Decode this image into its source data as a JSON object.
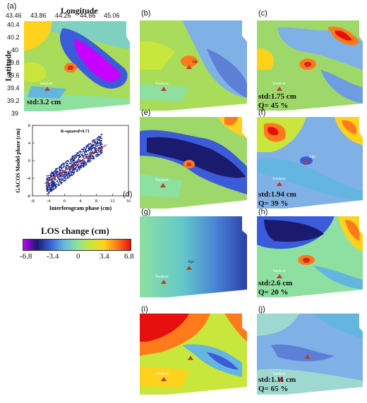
{
  "figure": {
    "longitude_label": "Longitude",
    "latitude_label": "Latitude",
    "lon_ticks": [
      "43.46",
      "43.86",
      "44.26",
      "44.66",
      "45.06"
    ],
    "lat_ticks": [
      "40.4",
      "40.2",
      "40",
      "39.8",
      "39.6",
      "39.4",
      "39.2",
      "39"
    ],
    "volcano_labels": {
      "ararat": "Ağrı",
      "tendurek": "Tendürek"
    },
    "panels": [
      {
        "id": "a",
        "label": "(a)",
        "stats": [
          "std:3.2 cm"
        ]
      },
      {
        "id": "b",
        "label": "(b)",
        "stats": []
      },
      {
        "id": "c",
        "label": "(c)",
        "stats": [
          "std:1.75 cm",
          "Q= 45 %"
        ]
      },
      {
        "id": "d",
        "label": "(d)",
        "stats": []
      },
      {
        "id": "e",
        "label": "(e)",
        "stats": []
      },
      {
        "id": "f",
        "label": "(f)",
        "stats": [
          "std:1.94 cm",
          "Q= 39 %"
        ]
      },
      {
        "id": "g",
        "label": "(g)",
        "stats": []
      },
      {
        "id": "h",
        "label": "(h)",
        "stats": [
          "std:2.6 cm",
          "Q= 20 %"
        ]
      },
      {
        "id": "i",
        "label": "(i)",
        "stats": []
      },
      {
        "id": "j",
        "label": "(j)",
        "stats": [
          "std:1.11 cm",
          "Q= 65 %"
        ]
      }
    ],
    "colorbar": {
      "title": "LOS change (cm)",
      "ticks": [
        "-6.8",
        "-3.4",
        "0",
        "3.4",
        "6.8"
      ],
      "colors": [
        "#c800ff",
        "#1a1a6e",
        "#3b5bd9",
        "#64b5e0",
        "#8de0a0",
        "#c8e63c",
        "#ffd21e",
        "#ff7a1a",
        "#e8100e"
      ]
    }
  },
  "chart_data": {
    "type": "scatter",
    "title": "R-squared=0.71",
    "xlabel": "Interferogram phase (cm)",
    "ylabel": "GACOS Model phase (cm)",
    "xlim": [
      -8,
      16
    ],
    "ylim": [
      -8,
      8
    ],
    "xticks": [
      "-8",
      "-4",
      "0",
      "4",
      "8",
      "12",
      "16"
    ],
    "yticks": [
      "8",
      "4",
      "0",
      "-4",
      "-8"
    ],
    "regression_line": {
      "x": [
        -5,
        10.5
      ],
      "y": [
        -5.2,
        3.6
      ]
    },
    "point_cloud": {
      "x_center": 2.5,
      "y_center": -0.8,
      "x_spread": 7,
      "y_spread": 2.2
    }
  }
}
